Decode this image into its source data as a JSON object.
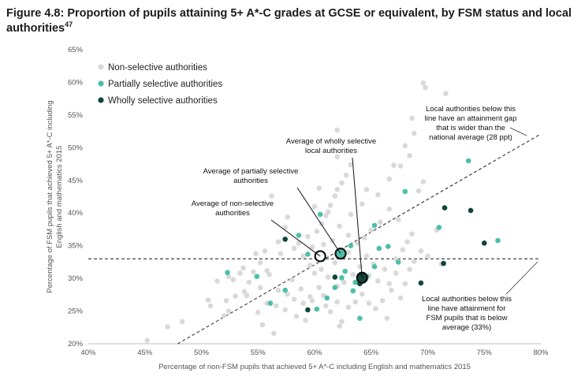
{
  "title": "Figure 4.8: Proportion of pupils attaining 5+ A*-C grades at GCSE or equivalent, by FSM status and local authorities",
  "title_ref": "47",
  "colors": {
    "non_selective": "#d9d9d9",
    "partially_selective": "#4dbfa8",
    "wholly_selective": "#11453b",
    "reference": "#444444"
  },
  "chart_data": {
    "type": "scatter",
    "xlabel": "Percentage of non-FSM pupils that achieved 5+ A*-C including English and mathematics 2015",
    "ylabel": "Percentage of FSM pupils that achieved 5+ A*-C including English and mathematics 2015",
    "xlim": [
      40,
      80
    ],
    "ylim": [
      20,
      65
    ],
    "x_ticks": [
      "40%",
      "45%",
      "50%",
      "55%",
      "60%",
      "65%",
      "70%",
      "75%",
      "80%"
    ],
    "y_ticks": [
      "20%",
      "25%",
      "30%",
      "35%",
      "40%",
      "45%",
      "50%",
      "55%",
      "60%",
      "65%"
    ],
    "legend_position": "top-left",
    "series": [
      {
        "name": "Non-selective authorities",
        "color": "#d9d9d9",
        "points": [
          [
            45.2,
            20.5
          ],
          [
            47.0,
            22.6
          ],
          [
            48.3,
            23.4
          ],
          [
            50.6,
            26.7
          ],
          [
            50.8,
            25.8
          ],
          [
            51.4,
            29.6
          ],
          [
            52.4,
            30.3
          ],
          [
            52.8,
            29.8
          ],
          [
            53.4,
            30.8
          ],
          [
            53.7,
            31.6
          ],
          [
            54.6,
            31.0
          ],
          [
            55.2,
            32.4
          ],
          [
            55.8,
            31.2
          ],
          [
            54.2,
            29.4
          ],
          [
            52.2,
            26.6
          ],
          [
            53.0,
            27.3
          ],
          [
            52.0,
            24.3
          ],
          [
            52.4,
            25.0
          ],
          [
            54.0,
            27.4
          ],
          [
            55.8,
            26.2
          ],
          [
            55.0,
            24.8
          ],
          [
            55.4,
            22.9
          ],
          [
            56.4,
            21.6
          ],
          [
            57.4,
            25.2
          ],
          [
            58.0,
            29.8
          ],
          [
            58.8,
            28.4
          ],
          [
            58.4,
            24.2
          ],
          [
            59.2,
            23.6
          ],
          [
            59.6,
            27.2
          ],
          [
            60.4,
            28.6
          ],
          [
            60.8,
            27.4
          ],
          [
            61.0,
            25.8
          ],
          [
            61.4,
            24.9
          ],
          [
            62.0,
            26.4
          ],
          [
            62.4,
            23.4
          ],
          [
            62.2,
            22.7
          ],
          [
            63.0,
            25.6
          ],
          [
            63.6,
            26.4
          ],
          [
            64.2,
            27.6
          ],
          [
            64.8,
            26.2
          ],
          [
            65.4,
            25.4
          ],
          [
            66.0,
            26.6
          ],
          [
            66.4,
            23.9
          ],
          [
            66.8,
            28.2
          ],
          [
            67.6,
            27.0
          ],
          [
            68.0,
            29.2
          ],
          [
            68.4,
            31.4
          ],
          [
            68.8,
            32.6
          ],
          [
            69.4,
            34.2
          ],
          [
            70.0,
            33.4
          ],
          [
            57.0,
            33.8
          ],
          [
            58.6,
            35.4
          ],
          [
            59.4,
            36.4
          ],
          [
            60.2,
            37.2
          ],
          [
            60.6,
            38.4
          ],
          [
            61.0,
            39.6
          ],
          [
            61.4,
            41.2
          ],
          [
            61.8,
            42.6
          ],
          [
            62.0,
            43.6
          ],
          [
            61.2,
            40.2
          ],
          [
            60.4,
            43.8
          ],
          [
            62.4,
            44.6
          ],
          [
            62.8,
            45.8
          ],
          [
            63.2,
            47.4
          ],
          [
            62.0,
            48.6
          ],
          [
            62.0,
            52.7
          ],
          [
            59.0,
            33.4
          ],
          [
            59.8,
            34.8
          ],
          [
            60.8,
            35.2
          ],
          [
            61.6,
            35.8
          ],
          [
            63.0,
            36.6
          ],
          [
            63.8,
            35.4
          ],
          [
            64.4,
            36.2
          ],
          [
            65.0,
            37.4
          ],
          [
            65.8,
            38.6
          ],
          [
            64.6,
            33.4
          ],
          [
            65.2,
            32.2
          ],
          [
            66.2,
            31.4
          ],
          [
            67.2,
            33.0
          ],
          [
            67.8,
            34.4
          ],
          [
            68.2,
            35.6
          ],
          [
            68.6,
            36.8
          ],
          [
            67.4,
            39.0
          ],
          [
            66.6,
            40.6
          ],
          [
            65.6,
            42.8
          ],
          [
            66.6,
            45.2
          ],
          [
            67.0,
            47.3
          ],
          [
            67.6,
            47.2
          ],
          [
            68.4,
            48.8
          ],
          [
            68.0,
            50.3
          ],
          [
            68.8,
            52.2
          ],
          [
            68.6,
            54.5
          ],
          [
            69.2,
            43.4
          ],
          [
            69.6,
            44.8
          ],
          [
            70.8,
            37.4
          ],
          [
            71.2,
            32.2
          ],
          [
            69.6,
            59.9
          ],
          [
            69.8,
            59.2
          ],
          [
            71.6,
            58.3
          ],
          [
            56.2,
            42.6
          ],
          [
            57.6,
            39.4
          ],
          [
            56.8,
            35.6
          ],
          [
            57.4,
            37.8
          ],
          [
            58.2,
            34.6
          ],
          [
            55.6,
            34.2
          ],
          [
            54.8,
            33.8
          ],
          [
            56.0,
            30.6
          ],
          [
            56.8,
            28.2
          ],
          [
            57.6,
            27.6
          ],
          [
            58.2,
            26.8
          ],
          [
            59.0,
            26.2
          ],
          [
            59.8,
            26.6
          ],
          [
            60.0,
            30.8
          ],
          [
            60.6,
            31.4
          ],
          [
            61.2,
            30.2
          ],
          [
            62.0,
            28.8
          ],
          [
            62.6,
            29.4
          ],
          [
            63.4,
            30.6
          ],
          [
            64.0,
            31.8
          ],
          [
            64.8,
            30.4
          ],
          [
            65.6,
            29.6
          ],
          [
            66.6,
            29.2
          ],
          [
            67.2,
            30.8
          ],
          [
            55.2,
            28.6
          ],
          [
            53.8,
            28.0
          ],
          [
            56.6,
            25.8
          ],
          [
            59.6,
            32.0
          ],
          [
            61.8,
            32.4
          ],
          [
            63.0,
            34.0
          ],
          [
            62.2,
            38.0
          ],
          [
            63.2,
            39.8
          ],
          [
            64.2,
            41.4
          ],
          [
            64.6,
            43.6
          ],
          [
            60.0,
            41.0
          ]
        ]
      },
      {
        "name": "Partially selective authorities",
        "color": "#4dbfa8",
        "points": [
          [
            52.3,
            30.9
          ],
          [
            54.9,
            30.3
          ],
          [
            56.1,
            26.2
          ],
          [
            57.4,
            28.2
          ],
          [
            58.6,
            36.6
          ],
          [
            59.4,
            33.7
          ],
          [
            60.2,
            25.3
          ],
          [
            60.7,
            32.9
          ],
          [
            60.5,
            39.8
          ],
          [
            61.1,
            27.0
          ],
          [
            61.8,
            28.6
          ],
          [
            62.1,
            33.9
          ],
          [
            62.4,
            30.1
          ],
          [
            62.7,
            31.1
          ],
          [
            63.2,
            35.0
          ],
          [
            63.4,
            28.1
          ],
          [
            63.6,
            29.4
          ],
          [
            64.0,
            23.9
          ],
          [
            64.6,
            30.3
          ],
          [
            65.3,
            31.8
          ],
          [
            65.3,
            38.1
          ],
          [
            65.7,
            34.6
          ],
          [
            66.5,
            34.9
          ],
          [
            67.4,
            32.5
          ],
          [
            68.0,
            43.3
          ],
          [
            71.0,
            37.8
          ],
          [
            73.6,
            48.0
          ],
          [
            76.2,
            35.8
          ]
        ]
      },
      {
        "name": "Wholly selective authorities",
        "color": "#11453b",
        "points": [
          [
            57.4,
            36.0
          ],
          [
            59.4,
            25.2
          ],
          [
            61.8,
            30.2
          ],
          [
            64.0,
            29.2
          ],
          [
            69.4,
            29.3
          ],
          [
            71.4,
            32.3
          ],
          [
            71.5,
            40.8
          ],
          [
            73.8,
            40.4
          ],
          [
            75.0,
            35.4
          ]
        ]
      }
    ],
    "averages": [
      {
        "label": "Average of non-selective authorities",
        "x": 60.5,
        "y": 33.4,
        "lines": [
          "Average of non-selective",
          "authorities"
        ]
      },
      {
        "label": "Average of partially selective authorities",
        "x": 62.3,
        "y": 33.8,
        "lines": [
          "Average of partially selective",
          "authorities"
        ]
      },
      {
        "label": "Average of wholly selective local authorities",
        "x": 64.2,
        "y": 30.1,
        "lines": [
          "Average of wholly selective",
          "local authorities"
        ]
      }
    ],
    "reference_lines": [
      {
        "type": "horizontal",
        "y": 33
      },
      {
        "type": "diagonal",
        "from": [
          47.9,
          20
        ],
        "to": [
          80,
          52.1
        ]
      }
    ],
    "annotations": [
      {
        "lines": [
          "Local authorities below this",
          "line have an attainment gap",
          "that is wider than the",
          "national average (28 ppt)"
        ]
      },
      {
        "lines": [
          "Local authorities below this",
          "line have attainment for",
          "FSM pupils that is below",
          "average (33%)"
        ]
      }
    ]
  }
}
